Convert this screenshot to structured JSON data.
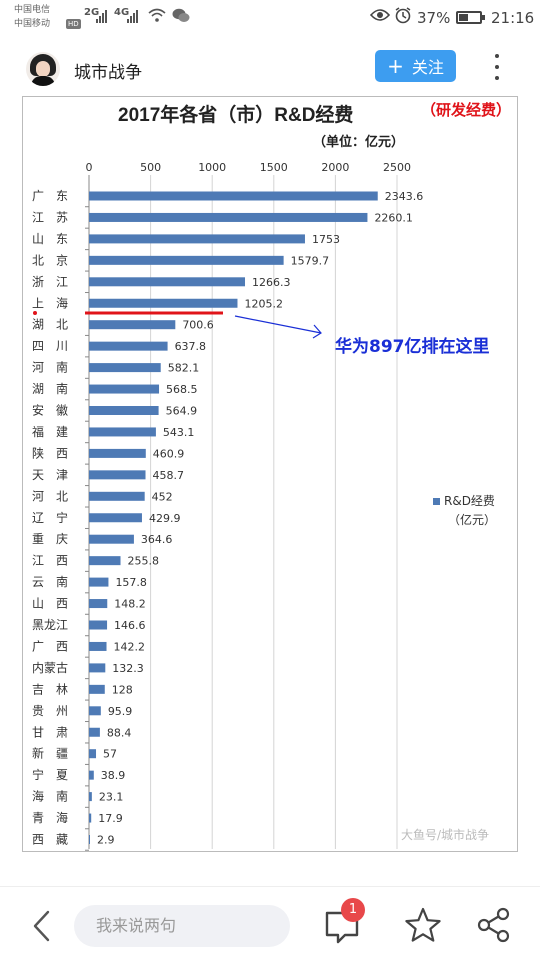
{
  "status_bar": {
    "carrier1": "中国电信",
    "carrier2": "中国移动",
    "hd": "HD",
    "net1": "2G",
    "net2": "4G",
    "battery": "37%",
    "time": "21:16",
    "icons": [
      "wifi-icon",
      "wechat-icon",
      "eye-icon",
      "alarm-icon",
      "battery-icon"
    ]
  },
  "header": {
    "account_name": "城市战争",
    "follow_label": "关注",
    "follow_icon": "+",
    "accent": "#3d9df0"
  },
  "chart_data": {
    "type": "bar",
    "orientation": "horizontal",
    "title": "2017年各省（市）R&D经费",
    "title_annotation": "（研发经费）",
    "subtitle": "（单位：亿元）",
    "xlim": [
      0,
      2500
    ],
    "xticks": [
      0,
      500,
      1000,
      1500,
      2000,
      2500
    ],
    "grid": true,
    "legend": {
      "label": "R&D经费",
      "unit": "（亿元）",
      "placement": "right"
    },
    "bar_color": "#4e7ab5",
    "categories": [
      "广　东",
      "江　苏",
      "山　东",
      "北　京",
      "浙　江",
      "上　海",
      "湖　北",
      "四　川",
      "河　南",
      "湖　南",
      "安　徽",
      "福　建",
      "陕　西",
      "天　津",
      "河　北",
      "辽　宁",
      "重　庆",
      "江　西",
      "云　南",
      "山　西",
      "黑龙江",
      "广　西",
      "内蒙古",
      "吉　林",
      "贵　州",
      "甘　肃",
      "新　疆",
      "宁　夏",
      "海　南",
      "青　海",
      "西　藏"
    ],
    "values": [
      2343.6,
      2260.1,
      1753,
      1579.7,
      1266.3,
      1205.2,
      700.6,
      637.8,
      582.1,
      568.5,
      564.9,
      543.1,
      460.9,
      458.7,
      452,
      429.9,
      364.6,
      255.8,
      157.8,
      148.2,
      146.6,
      142.2,
      132.3,
      128,
      95.9,
      88.4,
      57,
      38.9,
      23.1,
      17.9,
      2.9
    ],
    "value_labels": [
      "2343.6",
      "2260.1",
      "1753",
      "1579.7",
      "1266.3",
      "1205.2",
      "700.6",
      "637.8",
      "582.1",
      "568.5",
      "564.9",
      "543.1",
      "460.9",
      "458.7",
      "452",
      "429.9",
      "364.6",
      "255.8",
      "157.8",
      "148.2",
      "146.6",
      "142.2",
      "132.3",
      "128",
      "95.9",
      "88.4",
      "57",
      "38.9",
      "23.1",
      "17.9",
      "2.9"
    ],
    "annotation": {
      "text": "华为897亿排在这里",
      "between": [
        "上　海",
        "湖　北"
      ],
      "value": 897,
      "color": "#1a2fd6",
      "marker_color": "#e0141a"
    },
    "watermark": "大鱼号/城市战争"
  },
  "bottom_bar": {
    "comment_placeholder": "我来说两句",
    "comment_count": "1",
    "icons": [
      "back-arrow-icon",
      "comment-icon",
      "star-icon",
      "share-icon"
    ]
  }
}
